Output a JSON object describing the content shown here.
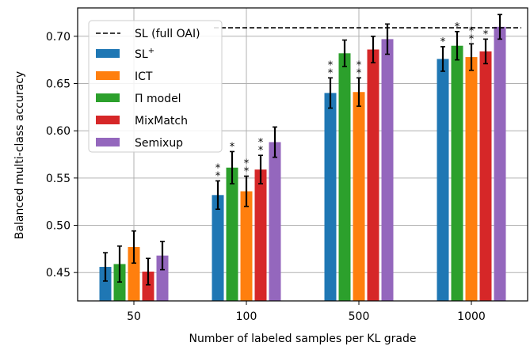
{
  "chart_data": {
    "type": "bar",
    "title": "",
    "xlabel": "Number of labeled samples per KL grade",
    "ylabel": "Balanced multi-class accuracy",
    "categories": [
      "50",
      "100",
      "500",
      "1000"
    ],
    "ylim": [
      0.42,
      0.73
    ],
    "yticks": [
      0.45,
      0.5,
      0.55,
      0.6,
      0.65,
      0.7
    ],
    "ytick_labels": [
      "0.45",
      "0.50",
      "0.55",
      "0.60",
      "0.65",
      "0.70"
    ],
    "grid": true,
    "legend_placement": "top-left",
    "reference_line": {
      "name": "SL (full OAI)",
      "value": 0.709,
      "style": "dashed",
      "color": "#000000"
    },
    "series": [
      {
        "name": "SL",
        "name_sup": "+",
        "color": "#1f77b4",
        "values": [
          0.456,
          0.532,
          0.64,
          0.676
        ],
        "errors": [
          0.015,
          0.015,
          0.016,
          0.013
        ],
        "stars": [
          "",
          "**",
          "**",
          "*"
        ]
      },
      {
        "name": "ICT",
        "color": "#ff7f0e",
        "values": [
          0.477,
          0.536,
          0.641,
          0.678
        ],
        "errors": [
          0.017,
          0.016,
          0.015,
          0.014
        ],
        "stars": [
          "",
          "**",
          "**",
          "**"
        ]
      },
      {
        "name": "Π model",
        "color": "#2ca02c",
        "values": [
          0.459,
          0.561,
          0.682,
          0.69
        ],
        "errors": [
          0.019,
          0.017,
          0.014,
          0.015
        ],
        "stars": [
          "",
          "*",
          "",
          "*"
        ]
      },
      {
        "name": "MixMatch",
        "color": "#d62728",
        "values": [
          0.451,
          0.559,
          0.686,
          0.684
        ],
        "errors": [
          0.014,
          0.015,
          0.014,
          0.013
        ],
        "stars": [
          "",
          "**",
          "",
          "*"
        ]
      },
      {
        "name": "Semixup",
        "color": "#9467bd",
        "values": [
          0.468,
          0.588,
          0.697,
          0.71
        ],
        "errors": [
          0.015,
          0.016,
          0.016,
          0.013
        ],
        "stars": [
          "",
          "",
          "",
          ""
        ]
      }
    ],
    "bar_order": [
      "SL",
      "Π model",
      "ICT",
      "MixMatch",
      "Semixup"
    ]
  }
}
